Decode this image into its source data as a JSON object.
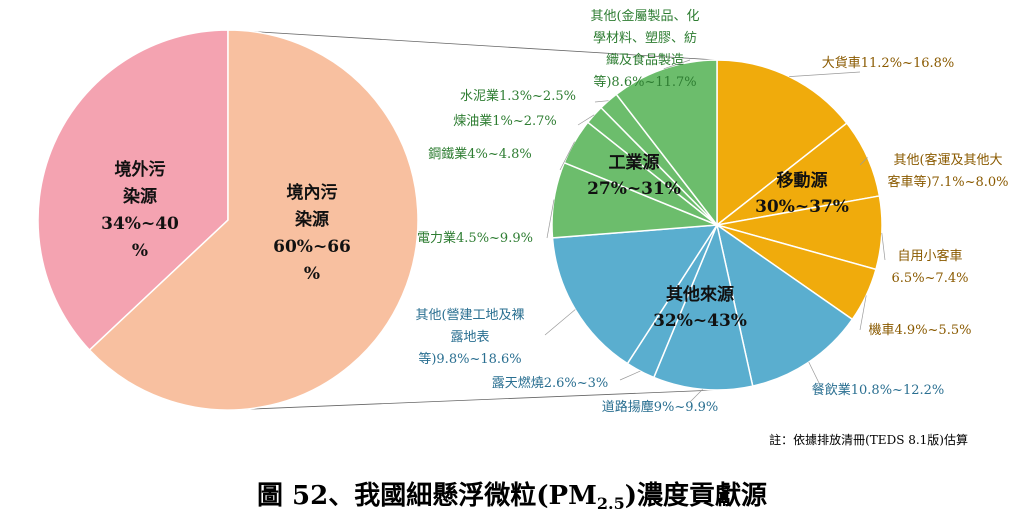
{
  "chart_data": [
    {
      "type": "pie",
      "slices": [
        {
          "label_lines": [
            "境外污",
            "染源",
            "34%~40",
            "%"
          ],
          "value": 37,
          "color": "#f4a3b1"
        },
        {
          "label_lines": [
            "境內污",
            "染源",
            "60%~66",
            "%"
          ],
          "value": 63,
          "color": "#f8c0a0"
        }
      ]
    },
    {
      "type": "pie",
      "categories": [
        {
          "label_lines": [
            "移動源",
            "30%~37%"
          ],
          "color": "#f0ab0c"
        },
        {
          "label_lines": [
            "其他來源",
            "32%~43%"
          ],
          "color": "#5aaecf"
        },
        {
          "label_lines": [
            "工業源",
            "27%~31%"
          ],
          "color": "#6cbd6c"
        }
      ],
      "slices": [
        {
          "category": 0,
          "value": 14.0,
          "label_lines": [
            "大貨車11.2%~16.8%"
          ]
        },
        {
          "category": 0,
          "value": 7.55,
          "label_lines": [
            "其他(客運及其他大",
            "客車等)7.1%~8.0%"
          ]
        },
        {
          "category": 0,
          "value": 6.95,
          "label_lines": [
            "自用小客車",
            "6.5%~7.4%"
          ]
        },
        {
          "category": 0,
          "value": 5.2,
          "label_lines": [
            "機車4.9%~5.5%"
          ]
        },
        {
          "category": 1,
          "value": 11.5,
          "label_lines": [
            "餐飲業10.8%~12.2%"
          ]
        },
        {
          "category": 1,
          "value": 9.45,
          "label_lines": [
            "道路揚塵9%~9.9%"
          ]
        },
        {
          "category": 1,
          "value": 2.8,
          "label_lines": [
            "露天燃燒2.6%~3%"
          ]
        },
        {
          "category": 1,
          "value": 14.2,
          "label_lines": [
            "其他(營建工地及裸",
            "露地表",
            "等)9.8%~18.6%"
          ]
        },
        {
          "category": 2,
          "value": 7.2,
          "label_lines": [
            "電力業4.5%~9.9%"
          ]
        },
        {
          "category": 2,
          "value": 4.4,
          "label_lines": [
            "鋼鐵業4%~4.8%"
          ]
        },
        {
          "category": 2,
          "value": 1.85,
          "label_lines": [
            "煉油業1%~2.7%"
          ]
        },
        {
          "category": 2,
          "value": 1.9,
          "label_lines": [
            "水泥業1.3%~2.5%"
          ]
        },
        {
          "category": 2,
          "value": 10.15,
          "label_lines": [
            "其他(金屬製品、化",
            "學材料、塑膠、紡",
            "織及食品製造",
            "等)8.6%~11.7%"
          ]
        }
      ]
    }
  ],
  "note": "註：依據排放清冊(TEDS 8.1版)估算",
  "caption": {
    "main": "圖 52、我國細懸浮微粒(PM",
    "sub": "2.5",
    "tail": ")濃度貢獻源"
  }
}
